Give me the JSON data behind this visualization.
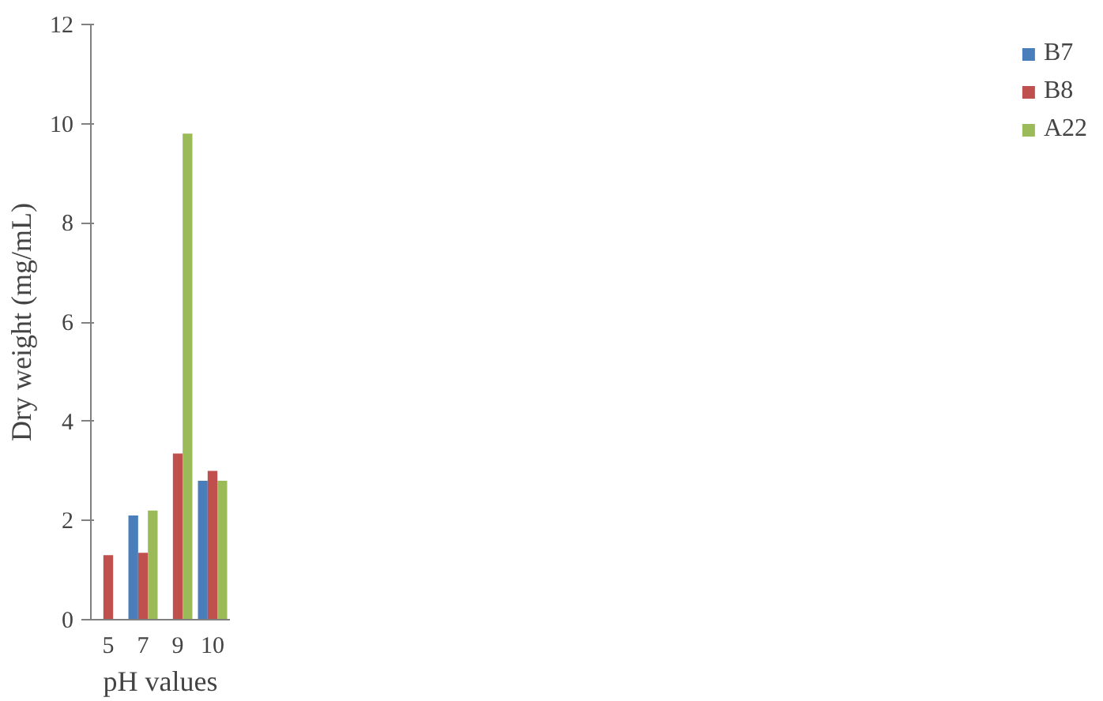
{
  "chart_data": {
    "type": "bar",
    "xlabel": "pH values",
    "ylabel": "Dry weight (mg/mL)",
    "categories": [
      "5",
      "7",
      "9",
      "10"
    ],
    "series": [
      {
        "name": "B7",
        "color": "#4a7ebb",
        "values": [
          null,
          2.1,
          null,
          2.8
        ]
      },
      {
        "name": "B8",
        "color": "#c0504d",
        "values": [
          1.3,
          1.35,
          3.35,
          3.0
        ]
      },
      {
        "name": "A22",
        "color": "#9bbb59",
        "values": [
          null,
          2.2,
          9.8,
          2.8
        ]
      }
    ],
    "ylim": [
      0,
      12
    ],
    "yticks": [
      0,
      2,
      4,
      6,
      8,
      10,
      12
    ],
    "grid": false,
    "legend": "right"
  }
}
